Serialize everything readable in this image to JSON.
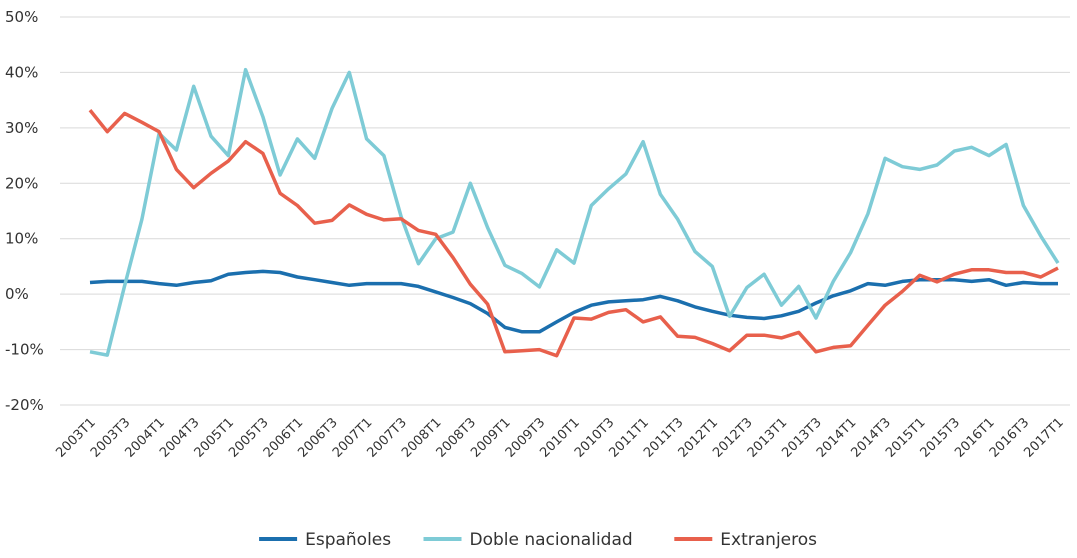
{
  "chart_data": {
    "type": "line",
    "categories": [
      "2003T1",
      null,
      "2003T3",
      null,
      "2004T1",
      null,
      "2004T3",
      null,
      "2005T1",
      null,
      "2005T3",
      null,
      "2006T1",
      null,
      "2006T3",
      null,
      "2007T1",
      null,
      "2007T3",
      null,
      "2008T1",
      null,
      "2008T3",
      null,
      "2009T1",
      null,
      "2009T3",
      null,
      "2010T1",
      null,
      "2010T3",
      null,
      "2011T1",
      null,
      "2011T3",
      null,
      "2012T1",
      null,
      "2012T3",
      null,
      "2013T1",
      null,
      "2013T3",
      null,
      "2014T1",
      null,
      "2014T3",
      null,
      "2015T1",
      null,
      "2015T3",
      null,
      "2016T1",
      null,
      "2016T3",
      null,
      "2017T1"
    ],
    "series": [
      {
        "name": "Españoles",
        "color": "#1b6fae",
        "values": [
          2.1,
          2.3,
          2.3,
          2.3,
          1.9,
          1.6,
          2.1,
          2.4,
          3.6,
          3.9,
          4.1,
          3.9,
          3.1,
          2.6,
          2.1,
          1.6,
          1.9,
          1.9,
          1.9,
          1.4,
          0.4,
          -0.6,
          -1.7,
          -3.5,
          -6,
          -6.8,
          -6.8,
          -5,
          -3.3,
          -2,
          -1.4,
          -1.2,
          -1,
          -0.4,
          -1.2,
          -2.3,
          -3.1,
          -3.8,
          -4.2,
          -4.4,
          -3.9,
          -3.1,
          -1.6,
          -0.3,
          0.6,
          1.9,
          1.6,
          2.3,
          2.6,
          2.6,
          2.6,
          2.3,
          2.6,
          1.6,
          2.1,
          1.9,
          1.9
        ]
      },
      {
        "name": "Doble nacionalidad",
        "color": "#7ecbd6",
        "values": [
          -10.4,
          -11,
          1.5,
          13.5,
          29,
          26,
          37.5,
          28.5,
          25,
          40.5,
          32,
          21.5,
          28,
          24.5,
          33.5,
          40,
          28,
          25,
          14,
          5.5,
          10,
          11.2,
          20,
          12,
          5.2,
          3.7,
          1.3,
          8,
          5.6,
          16,
          19,
          21.7,
          27.5,
          18,
          13.5,
          7.7,
          5,
          -4,
          1.2,
          3.6,
          -2,
          1.4,
          -4.3,
          2.3,
          7.5,
          14.5,
          24.5,
          23,
          22.5,
          23.3,
          25.8,
          26.5,
          25,
          27,
          16,
          10.5,
          5.6
        ]
      },
      {
        "name": "Extranjeros",
        "color": "#e8604c",
        "values": [
          33.2,
          29.3,
          32.6,
          31,
          29.3,
          22.5,
          19.2,
          21.8,
          24,
          27.5,
          25.4,
          18.2,
          16,
          12.8,
          13.3,
          16.1,
          14.4,
          13.4,
          13.6,
          11.5,
          10.8,
          6.6,
          1.8,
          -1.8,
          -10.4,
          -10.2,
          -10,
          -11.1,
          -4.3,
          -4.5,
          -3.3,
          -2.8,
          -5,
          -4.1,
          -7.6,
          -7.8,
          -8.9,
          -10.2,
          -7.4,
          -7.4,
          -7.9,
          -6.9,
          -10.4,
          -9.6,
          -9.3,
          -5.6,
          -2,
          0.5,
          3.4,
          2.2,
          3.6,
          4.4,
          4.4,
          3.9,
          3.9,
          3.1,
          4.7
        ]
      }
    ],
    "ylim": [
      -20,
      50
    ],
    "yticks": [
      {
        "value": -20,
        "label": "-20%"
      },
      {
        "value": -10,
        "label": "-10%"
      },
      {
        "value": 0,
        "label": "0%"
      },
      {
        "value": 10,
        "label": "10%"
      },
      {
        "value": 20,
        "label": "20%"
      },
      {
        "value": 30,
        "label": "30%"
      },
      {
        "value": 40,
        "label": "40%"
      },
      {
        "value": 50,
        "label": "50%"
      }
    ],
    "grid": true,
    "legend": "bottom"
  }
}
